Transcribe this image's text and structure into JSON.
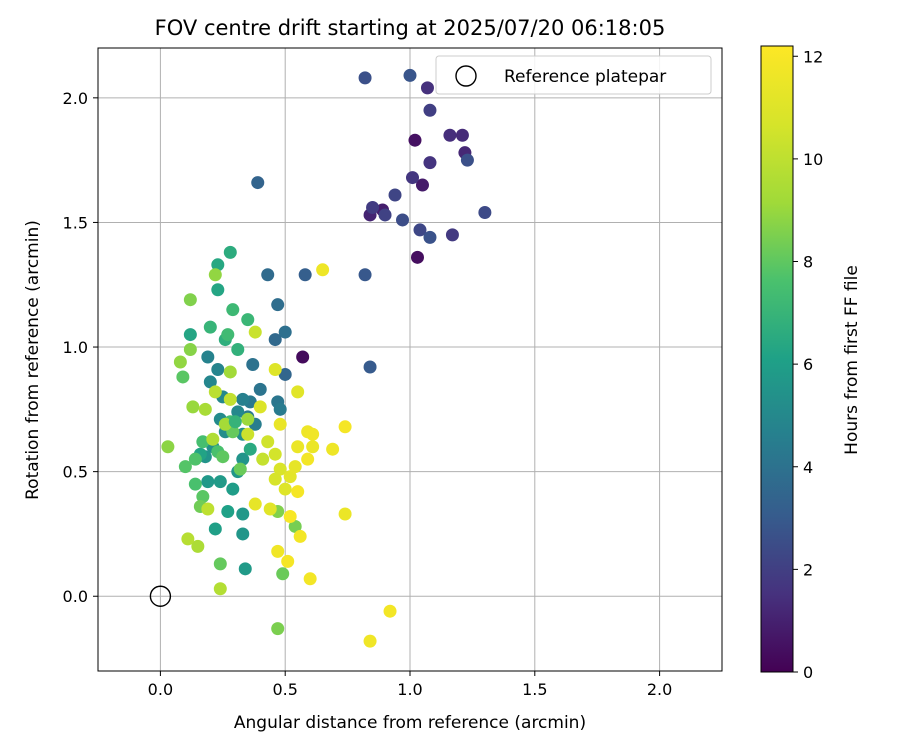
{
  "chart_data": {
    "type": "scatter",
    "title": "FOV centre drift starting at 2025/07/20 06:18:05",
    "xlabel": "Angular distance from reference (arcmin)",
    "ylabel": "Rotation from reference (arcmin)",
    "xlim": [
      -0.25,
      2.25
    ],
    "ylim": [
      -0.3,
      2.2
    ],
    "xticks": [
      "0.0",
      "0.5",
      "1.0",
      "1.5",
      "2.0"
    ],
    "yticks": [
      "0.0",
      "0.5",
      "1.0",
      "1.5",
      "2.0"
    ],
    "grid": true,
    "legend": {
      "placement": "top-right",
      "entries": [
        "Reference platepar"
      ]
    },
    "reference_point": {
      "x": 0.0,
      "y": 0.0
    },
    "colorbar": {
      "label": "Hours from first FF file",
      "range": [
        0,
        12.2
      ],
      "ticks": [
        "0",
        "2",
        "4",
        "6",
        "8",
        "10",
        "12"
      ],
      "colormap": "viridis"
    },
    "points": [
      {
        "x": 1.03,
        "y": 1.36,
        "c": 0.4
      },
      {
        "x": 1.02,
        "y": 1.83,
        "c": 0.5
      },
      {
        "x": 0.57,
        "y": 0.96,
        "c": 0.3
      },
      {
        "x": 1.05,
        "y": 1.65,
        "c": 0.8
      },
      {
        "x": 0.89,
        "y": 1.55,
        "c": 0.9
      },
      {
        "x": 1.22,
        "y": 1.78,
        "c": 1.2
      },
      {
        "x": 1.07,
        "y": 2.04,
        "c": 1.5
      },
      {
        "x": 1.16,
        "y": 1.85,
        "c": 1.4
      },
      {
        "x": 1.08,
        "y": 1.74,
        "c": 1.6
      },
      {
        "x": 1.21,
        "y": 1.85,
        "c": 1.3
      },
      {
        "x": 0.84,
        "y": 1.53,
        "c": 1.1
      },
      {
        "x": 1.01,
        "y": 1.68,
        "c": 1.7
      },
      {
        "x": 1.17,
        "y": 1.45,
        "c": 1.8
      },
      {
        "x": 0.85,
        "y": 1.56,
        "c": 1.9
      },
      {
        "x": 0.9,
        "y": 1.53,
        "c": 2.1
      },
      {
        "x": 1.08,
        "y": 1.95,
        "c": 2.0
      },
      {
        "x": 0.94,
        "y": 1.61,
        "c": 2.2
      },
      {
        "x": 1.04,
        "y": 1.47,
        "c": 2.3
      },
      {
        "x": 1.3,
        "y": 1.54,
        "c": 2.4
      },
      {
        "x": 1.23,
        "y": 1.75,
        "c": 2.6
      },
      {
        "x": 0.97,
        "y": 1.51,
        "c": 2.5
      },
      {
        "x": 1.08,
        "y": 1.44,
        "c": 2.7
      },
      {
        "x": 0.82,
        "y": 2.08,
        "c": 2.6
      },
      {
        "x": 1.0,
        "y": 2.09,
        "c": 2.8
      },
      {
        "x": 0.82,
        "y": 1.29,
        "c": 2.9
      },
      {
        "x": 0.84,
        "y": 0.92,
        "c": 3.0
      },
      {
        "x": 0.58,
        "y": 1.29,
        "c": 3.2
      },
      {
        "x": 0.39,
        "y": 1.66,
        "c": 3.4
      },
      {
        "x": 0.43,
        "y": 1.29,
        "c": 3.7
      },
      {
        "x": 0.47,
        "y": 1.17,
        "c": 3.8
      },
      {
        "x": 0.5,
        "y": 1.06,
        "c": 3.9
      },
      {
        "x": 0.46,
        "y": 1.03,
        "c": 3.6
      },
      {
        "x": 0.5,
        "y": 0.89,
        "c": 3.5
      },
      {
        "x": 0.37,
        "y": 0.93,
        "c": 4.0
      },
      {
        "x": 0.4,
        "y": 0.83,
        "c": 4.1
      },
      {
        "x": 0.47,
        "y": 0.78,
        "c": 4.2
      },
      {
        "x": 0.36,
        "y": 0.78,
        "c": 4.3
      },
      {
        "x": 0.48,
        "y": 0.75,
        "c": 4.4
      },
      {
        "x": 0.38,
        "y": 0.69,
        "c": 4.5
      },
      {
        "x": 0.35,
        "y": 0.72,
        "c": 4.3
      },
      {
        "x": 0.33,
        "y": 0.79,
        "c": 4.6
      },
      {
        "x": 0.19,
        "y": 0.96,
        "c": 4.7
      },
      {
        "x": 0.23,
        "y": 0.91,
        "c": 4.8
      },
      {
        "x": 0.2,
        "y": 0.86,
        "c": 4.9
      },
      {
        "x": 0.25,
        "y": 0.8,
        "c": 5.0
      },
      {
        "x": 0.31,
        "y": 0.74,
        "c": 5.0
      },
      {
        "x": 0.24,
        "y": 0.71,
        "c": 5.1
      },
      {
        "x": 0.26,
        "y": 0.66,
        "c": 5.2
      },
      {
        "x": 0.33,
        "y": 0.65,
        "c": 5.3
      },
      {
        "x": 0.21,
        "y": 0.6,
        "c": 5.4
      },
      {
        "x": 0.18,
        "y": 0.56,
        "c": 5.5
      },
      {
        "x": 0.33,
        "y": 0.55,
        "c": 5.5
      },
      {
        "x": 0.31,
        "y": 0.5,
        "c": 5.6
      },
      {
        "x": 0.19,
        "y": 0.46,
        "c": 5.7
      },
      {
        "x": 0.24,
        "y": 0.46,
        "c": 5.8
      },
      {
        "x": 0.29,
        "y": 0.43,
        "c": 5.9
      },
      {
        "x": 0.33,
        "y": 0.33,
        "c": 5.7
      },
      {
        "x": 0.33,
        "y": 0.25,
        "c": 5.6
      },
      {
        "x": 0.34,
        "y": 0.11,
        "c": 5.8
      },
      {
        "x": 0.22,
        "y": 0.27,
        "c": 6.0
      },
      {
        "x": 0.27,
        "y": 0.34,
        "c": 6.1
      },
      {
        "x": 0.16,
        "y": 0.57,
        "c": 6.2
      },
      {
        "x": 0.12,
        "y": 1.05,
        "c": 6.3
      },
      {
        "x": 0.23,
        "y": 1.23,
        "c": 6.3
      },
      {
        "x": 0.23,
        "y": 1.33,
        "c": 6.4
      },
      {
        "x": 0.28,
        "y": 1.38,
        "c": 6.6
      },
      {
        "x": 0.26,
        "y": 1.03,
        "c": 6.7
      },
      {
        "x": 0.31,
        "y": 0.99,
        "c": 6.8
      },
      {
        "x": 0.2,
        "y": 1.08,
        "c": 7.0
      },
      {
        "x": 0.29,
        "y": 1.15,
        "c": 7.2
      },
      {
        "x": 0.35,
        "y": 1.11,
        "c": 7.1
      },
      {
        "x": 0.27,
        "y": 1.05,
        "c": 7.3
      },
      {
        "x": 0.17,
        "y": 0.62,
        "c": 7.5
      },
      {
        "x": 0.28,
        "y": 0.7,
        "c": 7.4
      },
      {
        "x": 0.23,
        "y": 0.58,
        "c": 7.6
      },
      {
        "x": 0.14,
        "y": 0.55,
        "c": 7.7
      },
      {
        "x": 0.1,
        "y": 0.52,
        "c": 7.8
      },
      {
        "x": 0.17,
        "y": 0.4,
        "c": 7.9
      },
      {
        "x": 0.25,
        "y": 0.56,
        "c": 8.0
      },
      {
        "x": 0.29,
        "y": 0.66,
        "c": 8.1
      },
      {
        "x": 0.32,
        "y": 0.51,
        "c": 8.2
      },
      {
        "x": 0.16,
        "y": 0.36,
        "c": 8.3
      },
      {
        "x": 0.24,
        "y": 0.13,
        "c": 8.1
      },
      {
        "x": 0.49,
        "y": 0.09,
        "c": 8.2
      },
      {
        "x": 0.47,
        "y": -0.13,
        "c": 8.5
      },
      {
        "x": 0.54,
        "y": 0.28,
        "c": 8.4
      },
      {
        "x": 0.47,
        "y": 0.34,
        "c": 8.6
      },
      {
        "x": 0.03,
        "y": 0.6,
        "c": 8.8
      },
      {
        "x": 0.08,
        "y": 0.94,
        "c": 8.9
      },
      {
        "x": 0.09,
        "y": 0.88,
        "c": 7.9
      },
      {
        "x": 0.12,
        "y": 1.19,
        "c": 8.6
      },
      {
        "x": 0.22,
        "y": 1.29,
        "c": 8.9
      },
      {
        "x": 0.13,
        "y": 0.76,
        "c": 9.0
      },
      {
        "x": 0.28,
        "y": 0.9,
        "c": 9.2
      },
      {
        "x": 0.35,
        "y": 0.71,
        "c": 9.1
      },
      {
        "x": 0.26,
        "y": 0.69,
        "c": 9.3
      },
      {
        "x": 0.18,
        "y": 0.75,
        "c": 9.4
      },
      {
        "x": 0.15,
        "y": 0.2,
        "c": 9.5
      },
      {
        "x": 0.24,
        "y": 0.03,
        "c": 9.7
      },
      {
        "x": 0.11,
        "y": 0.23,
        "c": 9.8
      },
      {
        "x": 0.19,
        "y": 0.35,
        "c": 10.0
      },
      {
        "x": 0.41,
        "y": 0.55,
        "c": 10.2
      },
      {
        "x": 0.28,
        "y": 0.79,
        "c": 10.1
      },
      {
        "x": 0.38,
        "y": 1.06,
        "c": 10.3
      },
      {
        "x": 0.35,
        "y": 0.65,
        "c": 10.4
      },
      {
        "x": 0.46,
        "y": 0.57,
        "c": 10.6
      },
      {
        "x": 0.48,
        "y": 0.51,
        "c": 10.8
      },
      {
        "x": 0.46,
        "y": 0.47,
        "c": 10.7
      },
      {
        "x": 0.5,
        "y": 0.43,
        "c": 11.0
      },
      {
        "x": 0.52,
        "y": 0.48,
        "c": 11.2
      },
      {
        "x": 0.54,
        "y": 0.52,
        "c": 11.3
      },
      {
        "x": 0.55,
        "y": 0.82,
        "c": 11.1
      },
      {
        "x": 0.46,
        "y": 0.91,
        "c": 11.0
      },
      {
        "x": 0.48,
        "y": 0.69,
        "c": 11.4
      },
      {
        "x": 0.55,
        "y": 0.6,
        "c": 11.5
      },
      {
        "x": 0.59,
        "y": 0.66,
        "c": 11.6
      },
      {
        "x": 0.61,
        "y": 0.65,
        "c": 11.7
      },
      {
        "x": 0.61,
        "y": 0.6,
        "c": 11.5
      },
      {
        "x": 0.59,
        "y": 0.55,
        "c": 11.8
      },
      {
        "x": 0.55,
        "y": 0.42,
        "c": 11.9
      },
      {
        "x": 0.52,
        "y": 0.32,
        "c": 12.0
      },
      {
        "x": 0.56,
        "y": 0.24,
        "c": 11.8
      },
      {
        "x": 0.51,
        "y": 0.14,
        "c": 11.9
      },
      {
        "x": 0.47,
        "y": 0.18,
        "c": 11.7
      },
      {
        "x": 0.6,
        "y": 0.07,
        "c": 11.8
      },
      {
        "x": 0.69,
        "y": 0.59,
        "c": 11.6
      },
      {
        "x": 0.74,
        "y": 0.68,
        "c": 11.9
      },
      {
        "x": 0.74,
        "y": 0.33,
        "c": 11.5
      },
      {
        "x": 0.65,
        "y": 1.31,
        "c": 11.6
      },
      {
        "x": 0.92,
        "y": -0.06,
        "c": 11.8
      },
      {
        "x": 0.84,
        "y": -0.18,
        "c": 11.7
      },
      {
        "x": 0.44,
        "y": 0.35,
        "c": 11.1
      },
      {
        "x": 0.38,
        "y": 0.37,
        "c": 11.3
      },
      {
        "x": 0.4,
        "y": 0.76,
        "c": 10.9
      },
      {
        "x": 0.43,
        "y": 0.62,
        "c": 10.5
      },
      {
        "x": 0.21,
        "y": 0.63,
        "c": 9.6
      },
      {
        "x": 0.22,
        "y": 0.82,
        "c": 9.9
      },
      {
        "x": 0.12,
        "y": 0.99,
        "c": 8.7
      },
      {
        "x": 0.14,
        "y": 0.45,
        "c": 7.6
      },
      {
        "x": 0.36,
        "y": 0.59,
        "c": 6.5
      },
      {
        "x": 0.3,
        "y": 0.7,
        "c": 6.9
      }
    ]
  }
}
